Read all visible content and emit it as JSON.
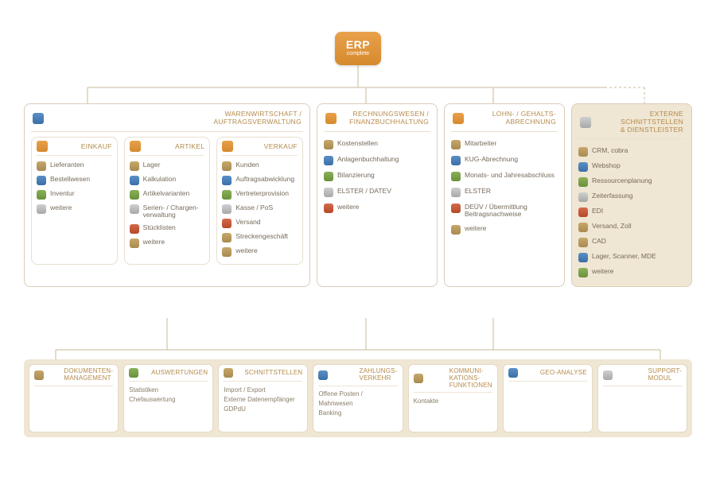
{
  "badge": {
    "line1": "ERP",
    "line2": "complete"
  },
  "colors": {
    "accent": "#d68a2e",
    "border": "#d9cdb8",
    "tan_bg": "#efe6d3",
    "text": "#776a5a",
    "heading": "#b58a4a"
  },
  "modules": {
    "warenwirtschaft": {
      "title": "WARENWIRTSCHAFT /\nAUFTRAGSVERWALTUNG",
      "sub": {
        "einkauf": {
          "title": "EINKAUF",
          "items": [
            "Lieferanten",
            "Bestellwesen",
            "Inventur",
            "weitere"
          ]
        },
        "artikel": {
          "title": "ARTIKEL",
          "items": [
            "Lager",
            "Kalkulation",
            "Artikelvarianten",
            "Serien- / Chargen­verwaltung",
            "Stücklisten",
            "weitere"
          ]
        },
        "verkauf": {
          "title": "VERKAUF",
          "items": [
            "Kunden",
            "Auftragsabwicklung",
            "Vertreterprovision",
            "Kasse / PoS",
            "Versand",
            "Streckengeschäft",
            "weitere"
          ]
        }
      }
    },
    "rechnungswesen": {
      "title": "RECHNUNGSWESEN /\nFINANZBUCHHALTUNG",
      "items": [
        "Kostenstellen",
        "Anlagenbuchhaltung",
        "Bilanzierung",
        "ELSTER / DATEV",
        "weitere"
      ]
    },
    "lohn": {
      "title": "LOHN- / GEHALTS-\nABRECHNUNG",
      "items": [
        "Mitarbeiter",
        "KUG-Abrechnung",
        "Monats- und Jahresabschluss",
        "ELSTER",
        "DEÜV / Übermittlung Beitragsnachweise",
        "weitere"
      ]
    },
    "extern": {
      "title": "EXTERNE\nSCHNITTSTELLEN\n& DIENSTLEISTER",
      "items": [
        "CRM, cobra",
        "Webshop",
        "Ressourcen­planung",
        "Zeiterfassung",
        "EDI",
        "Versand, Zoll",
        "CAD",
        "Lager, Scanner, MDE",
        "weitere"
      ]
    }
  },
  "bottom": [
    {
      "title": "DOKUMENTEN-\nMANAGEMENT",
      "items": []
    },
    {
      "title": "AUSWERTUNGEN",
      "items": [
        "Statistiken",
        "Chefauswertung"
      ]
    },
    {
      "title": "SCHNITTSTELLEN",
      "items": [
        "Import / Export",
        "Externe Datenempfänger",
        "GDPdU"
      ]
    },
    {
      "title": "ZAHLUNGS-\nVERKEHR",
      "items": [
        "Offene Posten /",
        "Mahnwesen",
        "Banking"
      ]
    },
    {
      "title": "KOMMUNI-\nKATIONS-\nFUNKTIONEN",
      "items": [
        "Kontakte"
      ]
    },
    {
      "title": "GEO-ANALYSE",
      "items": []
    },
    {
      "title": "SUPPORT-\nMODUL",
      "items": []
    }
  ]
}
